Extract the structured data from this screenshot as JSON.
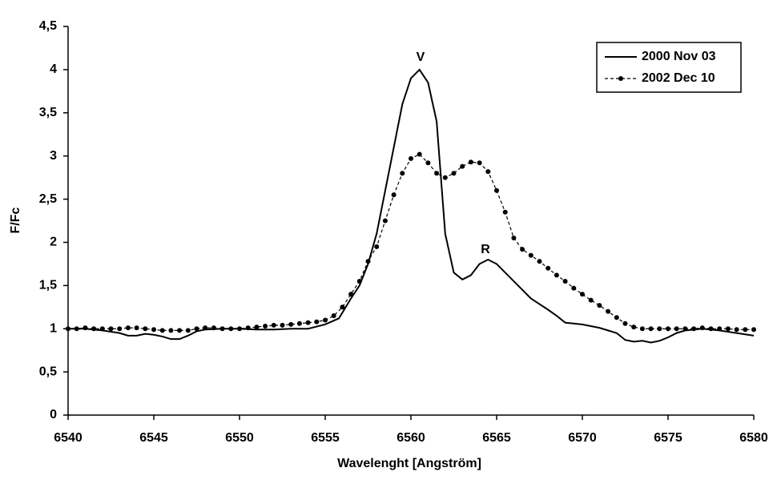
{
  "chart_data": {
    "type": "line",
    "x_label": "Wavelenght [Angström]",
    "y_label": "F/Fc",
    "annotations": [
      "V",
      "R"
    ],
    "xlim": [
      6540,
      6580
    ],
    "xticks": [
      6540,
      6545,
      6550,
      6555,
      6560,
      6565,
      6570,
      6575,
      6580
    ],
    "ylim": [
      0,
      4.5
    ],
    "yticks": [
      0,
      {
        "value": 0.5,
        "label": "0,5"
      },
      1,
      {
        "value": 1.5,
        "label": "1,5"
      },
      2,
      {
        "value": 2.5,
        "label": "2,5"
      },
      3,
      {
        "value": 3.5,
        "label": "3,5"
      },
      4,
      {
        "value": 4.5,
        "label": "4,5"
      }
    ],
    "grid": false,
    "legend": "top-right",
    "series": [
      {
        "name": "2000 Nov 03",
        "color": "#000000",
        "line_style": "solid",
        "marker": "none",
        "x": [
          6540,
          6541,
          6542,
          6543,
          6543.5,
          6544,
          6544.5,
          6545,
          6545.5,
          6546,
          6546.5,
          6547,
          6547.5,
          6548,
          6549,
          6550,
          6551,
          6552,
          6553,
          6554,
          6555,
          6555.8,
          6556.5,
          6557,
          6557.5,
          6558,
          6558.5,
          6559,
          6559.5,
          6560,
          6560.5,
          6561,
          6561.5,
          6562,
          6562.5,
          6563,
          6563.5,
          6564,
          6564.5,
          6565,
          6566,
          6567,
          6568,
          6568.5,
          6569,
          6570,
          6571,
          6571.5,
          6572,
          6572.5,
          6573,
          6573.5,
          6574,
          6574.5,
          6575,
          6575.5,
          6576,
          6577,
          6578,
          6579,
          6580
        ],
        "values": [
          1.0,
          1.0,
          0.98,
          0.95,
          0.92,
          0.92,
          0.94,
          0.93,
          0.91,
          0.88,
          0.88,
          0.92,
          0.97,
          0.99,
          1.0,
          1.0,
          0.99,
          0.99,
          1.0,
          1.0,
          1.05,
          1.12,
          1.35,
          1.5,
          1.75,
          2.1,
          2.6,
          3.1,
          3.6,
          3.9,
          4.0,
          3.85,
          3.4,
          2.1,
          1.65,
          1.57,
          1.62,
          1.75,
          1.8,
          1.75,
          1.55,
          1.35,
          1.22,
          1.15,
          1.07,
          1.05,
          1.01,
          0.98,
          0.95,
          0.87,
          0.85,
          0.86,
          0.84,
          0.86,
          0.9,
          0.95,
          0.98,
          1.0,
          0.98,
          0.95,
          0.92
        ]
      },
      {
        "name": "2002 Dec 10",
        "color": "#000000",
        "line_style": "dashed",
        "marker": "circle",
        "x": [
          6540,
          6540.5,
          6541,
          6541.5,
          6542,
          6542.5,
          6543,
          6543.5,
          6544,
          6544.5,
          6545,
          6545.5,
          6546,
          6546.5,
          6547,
          6547.5,
          6548,
          6548.5,
          6549,
          6549.5,
          6550,
          6550.5,
          6551,
          6551.5,
          6552,
          6552.5,
          6553,
          6553.5,
          6554,
          6554.5,
          6555,
          6555.5,
          6556,
          6556.5,
          6557,
          6557.5,
          6558,
          6558.5,
          6559,
          6559.5,
          6560,
          6560.5,
          6561,
          6561.5,
          6562,
          6562.5,
          6563,
          6563.5,
          6564,
          6564.5,
          6565,
          6565.5,
          6566,
          6566.5,
          6567,
          6567.5,
          6568,
          6568.5,
          6569,
          6569.5,
          6570,
          6570.5,
          6571,
          6571.5,
          6572,
          6572.5,
          6573,
          6573.5,
          6574,
          6574.5,
          6575,
          6575.5,
          6576,
          6576.5,
          6577,
          6577.5,
          6578,
          6578.5,
          6579,
          6579.5,
          6580
        ],
        "values": [
          1.0,
          1.0,
          1.01,
          1.0,
          1.0,
          1.0,
          1.0,
          1.01,
          1.01,
          1.0,
          0.99,
          0.98,
          0.98,
          0.98,
          0.98,
          1.0,
          1.01,
          1.01,
          1.0,
          1.0,
          1.0,
          1.01,
          1.02,
          1.03,
          1.04,
          1.04,
          1.05,
          1.06,
          1.07,
          1.08,
          1.1,
          1.15,
          1.25,
          1.4,
          1.55,
          1.78,
          1.95,
          2.25,
          2.55,
          2.8,
          2.97,
          3.02,
          2.92,
          2.8,
          2.75,
          2.8,
          2.88,
          2.93,
          2.92,
          2.82,
          2.6,
          2.35,
          2.05,
          1.92,
          1.85,
          1.78,
          1.7,
          1.62,
          1.55,
          1.47,
          1.4,
          1.33,
          1.27,
          1.2,
          1.13,
          1.06,
          1.02,
          1.0,
          1.0,
          1.0,
          1.0,
          1.0,
          1.0,
          1.0,
          1.01,
          1.0,
          1.0,
          1.0,
          0.99,
          0.99,
          0.99
        ]
      }
    ]
  }
}
